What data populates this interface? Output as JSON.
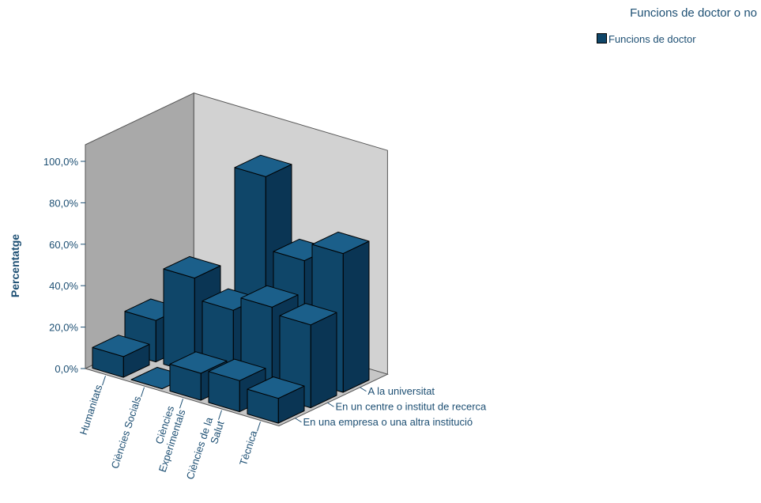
{
  "legend": {
    "title": "Funcions de doctor o no",
    "item_label": "Funcions de doctor"
  },
  "colors": {
    "bar_front": "#0f4669",
    "bar_top": "#1b5f8a",
    "bar_side": "#0a3554",
    "text": "#1d4f73",
    "wall_back": "#d2d2d2",
    "wall_left": "#a9a9a9",
    "floor": "#c6c6c6"
  },
  "chart_data": {
    "type": "bar3d",
    "ylabel": "Percentatge",
    "ylim": [
      0,
      100
    ],
    "yticks": [
      "0,0%",
      "20,0%",
      "40,0%",
      "60,0%",
      "80,0%",
      "100,0%"
    ],
    "categories": [
      "Humanitats",
      "Ciències Socials",
      "Ciències Experimentals",
      "Ciències de la Salut",
      "Tècnica"
    ],
    "depth_categories": [
      "A la universitat",
      "En un centre o institut de recerca",
      "En una empresa o una altra institució"
    ],
    "series": [
      {
        "name": "A la universitat",
        "values": [
          0,
          3,
          93,
          58,
          67
        ]
      },
      {
        "name": "En un centre o institut de recerca",
        "values": [
          20,
          46,
          36,
          43,
          40
        ]
      },
      {
        "name": "En una empresa o una altra institució",
        "values": [
          10,
          0,
          13,
          15,
          12
        ]
      }
    ]
  }
}
